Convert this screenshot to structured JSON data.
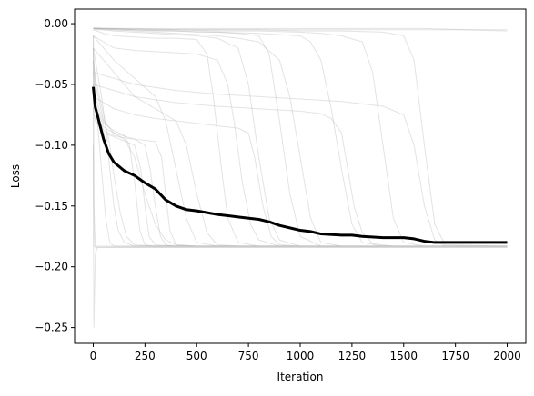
{
  "chart_data": {
    "type": "line",
    "title": "",
    "xlabel": "Iteration",
    "ylabel": "Loss",
    "xlim": [
      -90,
      2090
    ],
    "ylim": [
      -0.263,
      0.012
    ],
    "x_ticks": [
      0,
      250,
      500,
      750,
      1000,
      1250,
      1500,
      1750,
      2000
    ],
    "x_tick_labels": [
      "0",
      "250",
      "500",
      "750",
      "1000",
      "1250",
      "1500",
      "1750",
      "2000"
    ],
    "y_ticks": [
      0.0,
      -0.05,
      -0.1,
      -0.15,
      -0.2,
      -0.25
    ],
    "y_tick_labels": [
      "0.00",
      "−0.05",
      "−0.10",
      "−0.15",
      "−0.20",
      "−0.25"
    ],
    "grid": false,
    "legend": "none",
    "colors": {
      "mean_line": "#000000",
      "run_lines": "#b0b0b0",
      "axes": "#000000",
      "background": "#ffffff"
    },
    "series": [
      {
        "role": "mean",
        "x": [
          0,
          10,
          20,
          30,
          50,
          75,
          100,
          150,
          200,
          250,
          300,
          350,
          400,
          450,
          500,
          600,
          700,
          800,
          850,
          900,
          950,
          1000,
          1050,
          1100,
          1200,
          1250,
          1300,
          1400,
          1500,
          1550,
          1600,
          1650,
          1700,
          1800,
          2000
        ],
        "y": [
          -0.052,
          -0.069,
          -0.075,
          -0.082,
          -0.095,
          -0.107,
          -0.114,
          -0.121,
          -0.125,
          -0.131,
          -0.136,
          -0.145,
          -0.15,
          -0.153,
          -0.154,
          -0.157,
          -0.159,
          -0.161,
          -0.163,
          -0.166,
          -0.168,
          -0.17,
          -0.171,
          -0.173,
          -0.174,
          -0.174,
          -0.175,
          -0.176,
          -0.176,
          -0.177,
          -0.179,
          -0.18,
          -0.18,
          -0.18,
          -0.18
        ]
      },
      {
        "role": "run",
        "x": [
          0,
          10,
          50,
          100,
          200,
          300,
          400,
          500,
          600,
          700,
          800,
          900,
          1000,
          1200,
          1400,
          1600,
          1800,
          2000
        ],
        "y": [
          -0.004,
          -0.004,
          -0.004,
          -0.004,
          -0.004,
          -0.004,
          -0.004,
          -0.004,
          -0.004,
          -0.004,
          -0.004,
          -0.004,
          -0.004,
          -0.004,
          -0.004,
          -0.004,
          -0.005,
          -0.006
        ]
      },
      {
        "role": "run",
        "x": [
          0,
          10,
          50,
          100,
          200,
          300,
          400,
          500,
          600,
          700,
          800,
          900,
          1000,
          1200,
          1400,
          1600,
          1800,
          2000
        ],
        "y": [
          -0.005,
          -0.005,
          -0.005,
          -0.005,
          -0.005,
          -0.005,
          -0.005,
          -0.005,
          -0.005,
          -0.005,
          -0.005,
          -0.005,
          -0.005,
          -0.005,
          -0.005,
          -0.005,
          -0.005,
          -0.005
        ]
      },
      {
        "role": "run",
        "x": [
          0,
          3,
          10,
          20,
          30,
          50,
          100,
          200,
          400,
          800,
          1200,
          1600,
          2000
        ],
        "y": [
          -0.02,
          -0.183,
          -0.184,
          -0.184,
          -0.184,
          -0.184,
          -0.184,
          -0.184,
          -0.184,
          -0.184,
          -0.184,
          -0.184,
          -0.184
        ]
      },
      {
        "role": "run",
        "x": [
          0,
          3,
          10,
          20,
          30,
          50,
          100,
          200,
          400,
          800,
          1200,
          1600,
          2000
        ],
        "y": [
          -0.1,
          -0.25,
          -0.19,
          -0.184,
          -0.184,
          -0.184,
          -0.184,
          -0.184,
          -0.184,
          -0.184,
          -0.184,
          -0.184,
          -0.184
        ]
      },
      {
        "role": "run",
        "x": [
          0,
          3,
          10,
          20,
          30,
          50,
          100,
          200,
          400,
          800,
          1200,
          1600,
          2000
        ],
        "y": [
          -0.01,
          -0.15,
          -0.183,
          -0.183,
          -0.183,
          -0.183,
          -0.183,
          -0.183,
          -0.183,
          -0.183,
          -0.183,
          -0.183,
          -0.183
        ]
      },
      {
        "role": "run",
        "x": [
          0,
          5,
          10,
          20,
          40,
          60,
          80,
          100,
          150,
          250,
          500,
          1000,
          2000
        ],
        "y": [
          -0.01,
          -0.04,
          -0.06,
          -0.08,
          -0.12,
          -0.16,
          -0.18,
          -0.183,
          -0.183,
          -0.183,
          -0.183,
          -0.183,
          -0.183
        ]
      },
      {
        "role": "run",
        "x": [
          0,
          10,
          20,
          40,
          60,
          80,
          100,
          120,
          150,
          200,
          300,
          600,
          1200,
          2000
        ],
        "y": [
          -0.02,
          -0.03,
          -0.04,
          -0.06,
          -0.085,
          -0.12,
          -0.15,
          -0.17,
          -0.18,
          -0.183,
          -0.183,
          -0.183,
          -0.183,
          -0.183
        ]
      },
      {
        "role": "run",
        "x": [
          0,
          10,
          50,
          100,
          150,
          175,
          200,
          225,
          250,
          300,
          500,
          1000,
          2000
        ],
        "y": [
          -0.04,
          -0.06,
          -0.082,
          -0.088,
          -0.092,
          -0.1,
          -0.13,
          -0.17,
          -0.182,
          -0.183,
          -0.183,
          -0.183,
          -0.183
        ]
      },
      {
        "role": "run",
        "x": [
          0,
          10,
          50,
          100,
          200,
          250,
          275,
          300,
          325,
          350,
          400,
          800,
          2000
        ],
        "y": [
          -0.05,
          -0.065,
          -0.085,
          -0.09,
          -0.095,
          -0.1,
          -0.12,
          -0.15,
          -0.175,
          -0.182,
          -0.183,
          -0.183,
          -0.183
        ]
      },
      {
        "role": "run",
        "x": [
          0,
          10,
          50,
          100,
          150,
          200,
          300,
          330,
          350,
          370,
          400,
          500,
          1000,
          2000
        ],
        "y": [
          -0.06,
          -0.07,
          -0.088,
          -0.092,
          -0.094,
          -0.095,
          -0.097,
          -0.11,
          -0.14,
          -0.17,
          -0.182,
          -0.183,
          -0.183,
          -0.183
        ]
      },
      {
        "role": "run",
        "x": [
          0,
          10,
          50,
          100,
          200,
          230,
          250,
          270,
          300,
          400,
          800,
          2000
        ],
        "y": [
          -0.07,
          -0.08,
          -0.09,
          -0.093,
          -0.1,
          -0.12,
          -0.15,
          -0.175,
          -0.182,
          -0.183,
          -0.183,
          -0.183
        ]
      },
      {
        "role": "run",
        "x": [
          0,
          50,
          100,
          200,
          300,
          400,
          500,
          550,
          580,
          620,
          650,
          700,
          800,
          1200,
          2000
        ],
        "y": [
          -0.005,
          -0.008,
          -0.01,
          -0.011,
          -0.012,
          -0.012,
          -0.013,
          -0.025,
          -0.06,
          -0.12,
          -0.16,
          -0.18,
          -0.183,
          -0.183,
          -0.183
        ]
      },
      {
        "role": "run",
        "x": [
          0,
          50,
          100,
          200,
          300,
          400,
          500,
          600,
          650,
          680,
          720,
          760,
          800,
          900,
          1400,
          2000
        ],
        "y": [
          -0.01,
          -0.015,
          -0.02,
          -0.022,
          -0.023,
          -0.024,
          -0.025,
          -0.03,
          -0.05,
          -0.08,
          -0.13,
          -0.165,
          -0.178,
          -0.183,
          -0.183,
          -0.183
        ]
      },
      {
        "role": "run",
        "x": [
          0,
          50,
          100,
          200,
          300,
          400,
          500,
          600,
          700,
          750,
          800,
          850,
          900,
          1000,
          1500,
          2000
        ],
        "y": [
          -0.004,
          -0.005,
          -0.006,
          -0.007,
          -0.008,
          -0.009,
          -0.01,
          -0.012,
          -0.02,
          -0.05,
          -0.11,
          -0.16,
          -0.178,
          -0.183,
          -0.183,
          -0.183
        ]
      },
      {
        "role": "run",
        "x": [
          0,
          50,
          100,
          200,
          300,
          400,
          500,
          600,
          700,
          800,
          850,
          900,
          950,
          1000,
          1100,
          2000
        ],
        "y": [
          -0.003,
          -0.004,
          -0.005,
          -0.005,
          -0.006,
          -0.006,
          -0.007,
          -0.007,
          -0.008,
          -0.01,
          -0.025,
          -0.08,
          -0.14,
          -0.175,
          -0.183,
          -0.183
        ]
      },
      {
        "role": "run",
        "x": [
          0,
          100,
          200,
          300,
          400,
          500,
          600,
          700,
          800,
          900,
          950,
          1000,
          1050,
          1100,
          1200,
          2000
        ],
        "y": [
          -0.004,
          -0.005,
          -0.006,
          -0.007,
          -0.008,
          -0.009,
          -0.01,
          -0.012,
          -0.015,
          -0.03,
          -0.06,
          -0.11,
          -0.16,
          -0.18,
          -0.183,
          -0.183
        ]
      },
      {
        "role": "run",
        "x": [
          0,
          100,
          200,
          400,
          600,
          800,
          1000,
          1050,
          1100,
          1150,
          1200,
          1250,
          1300,
          1400,
          2000
        ],
        "y": [
          -0.004,
          -0.004,
          -0.005,
          -0.006,
          -0.007,
          -0.008,
          -0.01,
          -0.015,
          -0.03,
          -0.07,
          -0.12,
          -0.165,
          -0.18,
          -0.183,
          -0.183
        ]
      },
      {
        "role": "run",
        "x": [
          0,
          100,
          200,
          400,
          600,
          800,
          1000,
          1100,
          1150,
          1200,
          1230,
          1260,
          1300,
          1350,
          1450,
          2000
        ],
        "y": [
          -0.05,
          -0.055,
          -0.06,
          -0.065,
          -0.068,
          -0.07,
          -0.072,
          -0.074,
          -0.078,
          -0.09,
          -0.12,
          -0.15,
          -0.172,
          -0.181,
          -0.183,
          -0.183
        ]
      },
      {
        "role": "run",
        "x": [
          0,
          100,
          200,
          400,
          600,
          800,
          1000,
          1100,
          1200,
          1300,
          1350,
          1400,
          1450,
          1500,
          1600,
          2000
        ],
        "y": [
          -0.004,
          -0.004,
          -0.005,
          -0.005,
          -0.006,
          -0.006,
          -0.007,
          -0.008,
          -0.01,
          -0.015,
          -0.04,
          -0.1,
          -0.16,
          -0.18,
          -0.183,
          -0.183
        ]
      },
      {
        "role": "run",
        "x": [
          0,
          100,
          200,
          400,
          600,
          800,
          1000,
          1200,
          1300,
          1400,
          1500,
          1550,
          1600,
          1650,
          1700,
          2000
        ],
        "y": [
          -0.04,
          -0.045,
          -0.05,
          -0.055,
          -0.058,
          -0.06,
          -0.062,
          -0.064,
          -0.066,
          -0.068,
          -0.075,
          -0.1,
          -0.15,
          -0.178,
          -0.183,
          -0.183
        ]
      },
      {
        "role": "run",
        "x": [
          0,
          100,
          200,
          400,
          600,
          800,
          1000,
          1200,
          1400,
          1500,
          1550,
          1600,
          1650,
          1700,
          2000
        ],
        "y": [
          -0.004,
          -0.004,
          -0.004,
          -0.005,
          -0.005,
          -0.005,
          -0.006,
          -0.006,
          -0.007,
          -0.01,
          -0.03,
          -0.1,
          -0.165,
          -0.182,
          -0.183
        ]
      },
      {
        "role": "run",
        "x": [
          0,
          100,
          200,
          300,
          400,
          500,
          600,
          700,
          750,
          780,
          820,
          860,
          900,
          1000,
          2000
        ],
        "y": [
          -0.06,
          -0.07,
          -0.075,
          -0.078,
          -0.08,
          -0.082,
          -0.084,
          -0.086,
          -0.09,
          -0.11,
          -0.15,
          -0.175,
          -0.182,
          -0.183,
          -0.183
        ]
      },
      {
        "role": "run",
        "x": [
          0,
          10,
          50,
          100,
          150,
          200,
          250,
          300,
          350,
          400,
          500,
          800,
          2000
        ],
        "y": [
          -0.03,
          -0.05,
          -0.08,
          -0.09,
          -0.095,
          -0.11,
          -0.14,
          -0.165,
          -0.178,
          -0.182,
          -0.183,
          -0.183,
          -0.183
        ]
      },
      {
        "role": "run",
        "x": [
          0,
          10,
          30,
          50,
          80,
          100,
          130,
          160,
          200,
          300,
          600,
          2000
        ],
        "y": [
          -0.03,
          -0.045,
          -0.06,
          -0.075,
          -0.1,
          -0.125,
          -0.155,
          -0.175,
          -0.182,
          -0.183,
          -0.183,
          -0.183
        ]
      },
      {
        "role": "run",
        "x": [
          0,
          50,
          100,
          150,
          200,
          300,
          400,
          450,
          500,
          550,
          600,
          700,
          1000,
          2000
        ],
        "y": [
          -0.02,
          -0.03,
          -0.04,
          -0.05,
          -0.06,
          -0.07,
          -0.08,
          -0.1,
          -0.14,
          -0.172,
          -0.182,
          -0.183,
          -0.183,
          -0.183
        ]
      },
      {
        "role": "run",
        "x": [
          0,
          50,
          100,
          200,
          300,
          350,
          400,
          450,
          500,
          600,
          1000,
          2000
        ],
        "y": [
          -0.01,
          -0.02,
          -0.03,
          -0.045,
          -0.06,
          -0.08,
          -0.12,
          -0.16,
          -0.18,
          -0.183,
          -0.183,
          -0.183
        ]
      }
    ]
  }
}
